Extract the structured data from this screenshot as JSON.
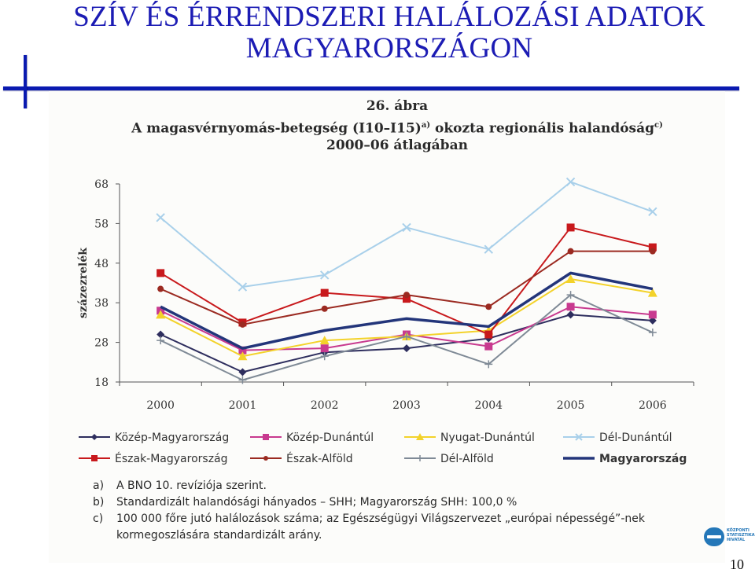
{
  "slide": {
    "title_line1": "SZÍV ÉS ÉRRENDSZERI HALÁLOZÁSI ADATOK",
    "title_line2": "MAGYARORSZÁGON",
    "page_number": "10",
    "accent_color": "#1c1cb4",
    "logo_text": [
      "KÖZPONTI",
      "STATISZTIKAI",
      "HIVATAL"
    ]
  },
  "figure": {
    "label": "26. ábra",
    "title_line1": "A magasvérnyomás-betegség (I10–I15)",
    "title_line1_sup1": "a)",
    "title_line1_mid": " okozta regionális halandóság",
    "title_line1_sup2": "c)",
    "title_line2": "2000–06 átlagában",
    "notes": [
      {
        "key": "a)",
        "text": "A BNO 10. revíziója szerint."
      },
      {
        "key": "b)",
        "text": "Standardizált halandósági hányados – SHH; Magyarország SHH: 100,0 %"
      },
      {
        "key": "c)",
        "text": "100 000 főre jutó halálozások száma; az Egészségügyi Világszervezet „európai népességé”-nek"
      },
      {
        "key": "",
        "text": "kormegoszlására standardizált arány."
      }
    ]
  },
  "chart_data": {
    "type": "line",
    "title": "A magasvérnyomás-betegség (I10–I15) okozta regionális halandóság 2000–06 átlagában",
    "xlabel": "",
    "ylabel": "százezrelék",
    "x": [
      "2000",
      "2001",
      "2002",
      "2003",
      "2004",
      "2005",
      "2006"
    ],
    "yticks": [
      18,
      28,
      38,
      48,
      58,
      68
    ],
    "ylim": [
      18,
      68
    ],
    "grid": false,
    "legend_position": "bottom",
    "series": [
      {
        "name": "Közép-Magyarország",
        "color": "#2e2e5e",
        "marker": "diamond",
        "values": [
          30,
          20.5,
          25.5,
          26.5,
          29,
          35,
          33.5
        ]
      },
      {
        "name": "Közép-Dunántúl",
        "color": "#c83a8f",
        "marker": "square",
        "values": [
          36,
          26,
          26.5,
          30,
          27,
          37,
          35
        ]
      },
      {
        "name": "Nyugat-Dunántúl",
        "color": "#f3d22a",
        "marker": "triangle",
        "values": [
          35,
          24.5,
          28.5,
          29.5,
          31,
          44,
          40.5
        ]
      },
      {
        "name": "Dél-Dunántúl",
        "color": "#a9d0ea",
        "marker": "x",
        "values": [
          59.5,
          42,
          45,
          57,
          51.5,
          68.5,
          61
        ]
      },
      {
        "name": "Észak-Magyarország",
        "color": "#c8191c",
        "marker": "square",
        "values": [
          45.5,
          33,
          40.5,
          39,
          30,
          57,
          52
        ]
      },
      {
        "name": "Észak-Alföld",
        "color": "#9b2a21",
        "marker": "circle",
        "values": [
          41.5,
          32.5,
          36.5,
          40,
          37,
          51,
          51
        ]
      },
      {
        "name": "Dél-Alföld",
        "color": "#7f8a96",
        "marker": "plus",
        "values": [
          28.5,
          18.5,
          24.5,
          29.5,
          22.5,
          40,
          30.5
        ]
      },
      {
        "name": "Magyarország",
        "color": "#23357a",
        "marker": "none",
        "width": 3.5,
        "values": [
          37,
          26.5,
          31,
          34,
          32,
          45.5,
          41.5
        ]
      }
    ],
    "legend_rows": [
      [
        "Közép-Magyarország",
        "Közép-Dunántúl",
        "Nyugat-Dunántúl",
        "Dél-Dunántúl"
      ],
      [
        "Észak-Magyarország",
        "Észak-Alföld",
        "Dél-Alföld",
        "Magyarország"
      ]
    ]
  }
}
